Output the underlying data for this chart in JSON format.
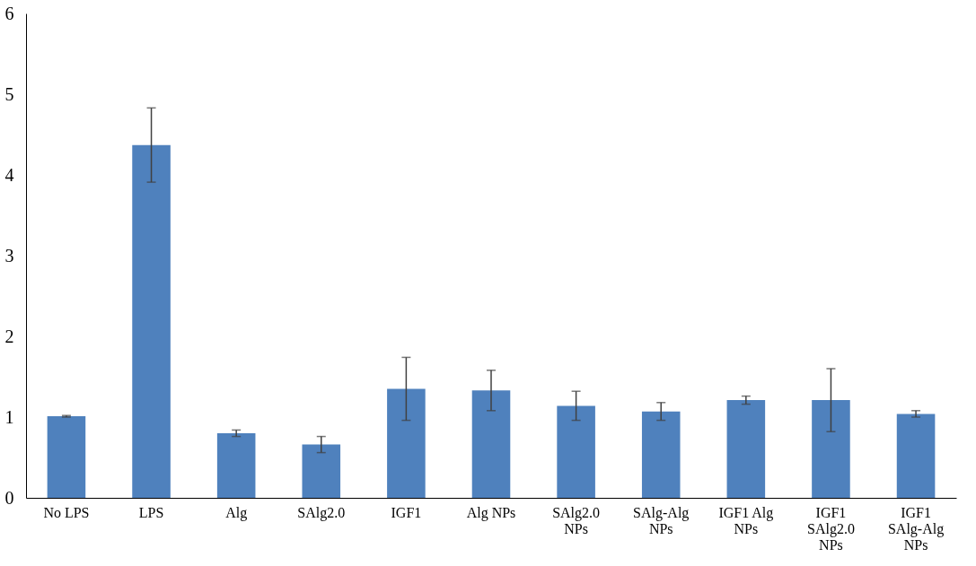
{
  "chart_data": {
    "type": "bar",
    "categories": [
      "No LPS",
      "LPS",
      "Alg",
      "SAlg2.0",
      "IGF1",
      "Alg NPs",
      "SAlg2.0 NPs",
      "SAlg-Alg NPs",
      "IGF1 Alg NPs",
      "IGF1 SAlg2.0 NPs",
      "IGF1 SAlg-Alg NPs"
    ],
    "values": [
      1.01,
      4.37,
      0.8,
      0.66,
      1.35,
      1.33,
      1.14,
      1.07,
      1.21,
      1.21,
      1.04
    ],
    "errors": [
      0.01,
      0.46,
      0.04,
      0.1,
      0.39,
      0.25,
      0.18,
      0.11,
      0.05,
      0.39,
      0.04
    ],
    "color": "#4f81bd",
    "ylim": [
      0,
      6
    ],
    "yticks": [
      0,
      1,
      2,
      3,
      4,
      5,
      6
    ],
    "grid": false
  }
}
